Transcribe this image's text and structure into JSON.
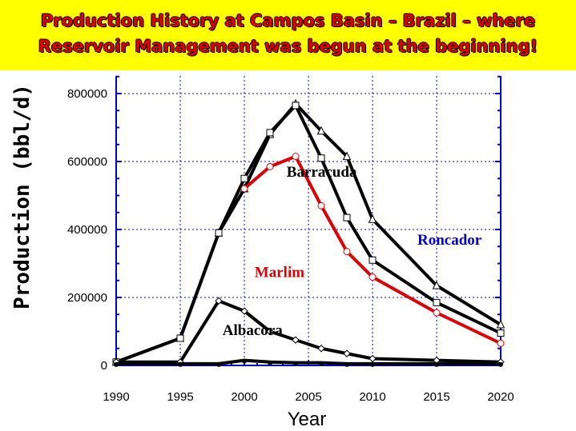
{
  "title": {
    "line1": "Production History at Campos Basin – Brazil – where",
    "line2": "Reservoir Management was begun at the beginning!"
  },
  "chart_data": {
    "type": "line",
    "xlabel": "Year",
    "ylabel": "Production (bbl/d)",
    "xlim": [
      1990,
      2020
    ],
    "ylim": [
      0,
      800000
    ],
    "xticks": [
      "1990",
      "1995",
      "2000",
      "2005",
      "2010",
      "2015",
      "2020"
    ],
    "yticks": [
      "0",
      "200000",
      "400000",
      "600000",
      "800000"
    ],
    "grid": true,
    "colors": {
      "black": "#000000",
      "red": "#dd0000",
      "blue": "#0000cc",
      "grid": "#0000cc",
      "banner": "#ffff00"
    },
    "series": [
      {
        "label": "Roncador",
        "color": "#000000",
        "marker": "triangle",
        "x": [
          1990,
          1995,
          1998,
          2000,
          2002,
          2004,
          2006,
          2008,
          2010,
          2015,
          2020
        ],
        "y": [
          10000,
          80000,
          390000,
          520000,
          680000,
          770000,
          690000,
          615000,
          430000,
          235000,
          120000
        ]
      },
      {
        "label": "Barracuda",
        "color": "#000000",
        "marker": "square",
        "x": [
          1990,
          1995,
          1998,
          2000,
          2002,
          2004,
          2006,
          2008,
          2010,
          2015,
          2020
        ],
        "y": [
          10000,
          80000,
          390000,
          550000,
          685000,
          765000,
          610000,
          435000,
          310000,
          185000,
          95000
        ]
      },
      {
        "label": "Marlim",
        "color": "#dd0000",
        "marker": "circle",
        "x": [
          2000,
          2002,
          2004,
          2006,
          2008,
          2010,
          2015,
          2020
        ],
        "y": [
          520000,
          585000,
          615000,
          470000,
          335000,
          260000,
          155000,
          65000
        ]
      },
      {
        "label": "Albacora",
        "color": "#000000",
        "marker": "diamond",
        "x": [
          1990,
          1995,
          1998,
          2000,
          2002,
          2004,
          2006,
          2008,
          2010,
          2015,
          2020
        ],
        "y": [
          10000,
          10000,
          190000,
          160000,
          100000,
          75000,
          50000,
          35000,
          20000,
          15000,
          10000
        ]
      },
      {
        "label": "",
        "color": "#000000",
        "marker": "dot",
        "x": [
          1990,
          1995,
          1998,
          2000,
          2002,
          2004,
          2006,
          2008,
          2010,
          2015,
          2020
        ],
        "y": [
          5000,
          5000,
          5000,
          15000,
          10000,
          8000,
          8000,
          5000,
          5000,
          5000,
          5000
        ]
      }
    ],
    "annotations": [
      {
        "text": "Barracuda",
        "x": 2003.3,
        "y": 555000,
        "color": "#000000"
      },
      {
        "text": "Roncador",
        "x": 2013.5,
        "y": 355000,
        "color": "#0000cc"
      },
      {
        "text": "Marlim",
        "x": 2000.8,
        "y": 260000,
        "color": "#dd0000"
      },
      {
        "text": "Albacora",
        "x": 1998.3,
        "y": 90000,
        "color": "#000000"
      }
    ]
  }
}
